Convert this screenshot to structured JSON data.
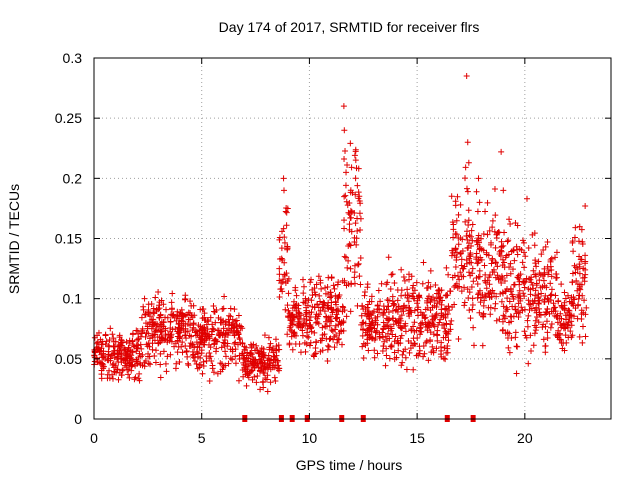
{
  "chart_data": {
    "type": "scatter",
    "title": "Day 174 of 2017, SRMTID for receiver flrs",
    "xlabel": "GPS time / hours",
    "ylabel": "SRMTID / TECUs",
    "xlim": [
      0,
      24
    ],
    "ylim": [
      0,
      0.3
    ],
    "x_ticks": [
      0,
      5,
      10,
      15,
      20
    ],
    "x_tick_labels": [
      "0",
      "5",
      "10",
      "15",
      "20"
    ],
    "y_ticks": [
      0,
      0.05,
      0.1,
      0.15,
      0.2,
      0.25,
      0.3
    ],
    "y_tick_labels": [
      "0",
      "0.05",
      "0.1",
      "0.15",
      "0.2",
      "0.25",
      "0.3"
    ],
    "grid": true,
    "marker": "plus",
    "series_color": "#e00000",
    "gap_markers_x": [
      7.0,
      8.7,
      9.2,
      9.9,
      11.5,
      12.5,
      16.4,
      17.6
    ],
    "segments": [
      {
        "x": [
          0.0,
          2.2
        ],
        "y": [
          0.025,
          0.082
        ]
      },
      {
        "x": [
          2.2,
          4.8
        ],
        "y": [
          0.03,
          0.115
        ]
      },
      {
        "x": [
          4.8,
          6.9
        ],
        "y": [
          0.025,
          0.11
        ]
      },
      {
        "x": [
          6.9,
          8.6
        ],
        "y": [
          0.02,
          0.075
        ]
      },
      {
        "x": [
          8.6,
          9.0
        ],
        "y": [
          0.06,
          0.2
        ]
      },
      {
        "x": [
          9.0,
          10.0
        ],
        "y": [
          0.05,
          0.12
        ]
      },
      {
        "x": [
          10.0,
          11.0
        ],
        "y": [
          0.03,
          0.14
        ]
      },
      {
        "x": [
          11.0,
          11.6
        ],
        "y": [
          0.04,
          0.13
        ]
      },
      {
        "x": [
          11.6,
          12.4
        ],
        "y": [
          0.06,
          0.26
        ]
      },
      {
        "x": [
          12.4,
          13.5
        ],
        "y": [
          0.04,
          0.12
        ]
      },
      {
        "x": [
          13.5,
          16.6
        ],
        "y": [
          0.03,
          0.14
        ]
      },
      {
        "x": [
          16.6,
          17.5
        ],
        "y": [
          0.05,
          0.23
        ]
      },
      {
        "x": [
          17.5,
          19.0
        ],
        "y": [
          0.04,
          0.2
        ]
      },
      {
        "x": [
          19.0,
          20.5
        ],
        "y": [
          0.03,
          0.18
        ]
      },
      {
        "x": [
          20.5,
          21.5
        ],
        "y": [
          0.04,
          0.165
        ]
      },
      {
        "x": [
          21.5,
          22.2
        ],
        "y": [
          0.04,
          0.12
        ]
      },
      {
        "x": [
          22.2,
          22.9
        ],
        "y": [
          0.05,
          0.175
        ]
      }
    ],
    "outliers": [
      {
        "x": 17.3,
        "y": 0.285
      },
      {
        "x": 11.6,
        "y": 0.26
      },
      {
        "x": 11.62,
        "y": 0.24
      },
      {
        "x": 17.35,
        "y": 0.23
      },
      {
        "x": 11.9,
        "y": 0.229
      },
      {
        "x": 18.9,
        "y": 0.222
      },
      {
        "x": 17.4,
        "y": 0.213
      },
      {
        "x": 8.8,
        "y": 0.2
      },
      {
        "x": 11.7,
        "y": 0.205
      },
      {
        "x": 17.85,
        "y": 0.2
      },
      {
        "x": 8.82,
        "y": 0.19
      },
      {
        "x": 19.0,
        "y": 0.19
      },
      {
        "x": 20.1,
        "y": 0.183
      },
      {
        "x": 22.8,
        "y": 0.177
      },
      {
        "x": 17.9,
        "y": 0.18
      }
    ]
  }
}
